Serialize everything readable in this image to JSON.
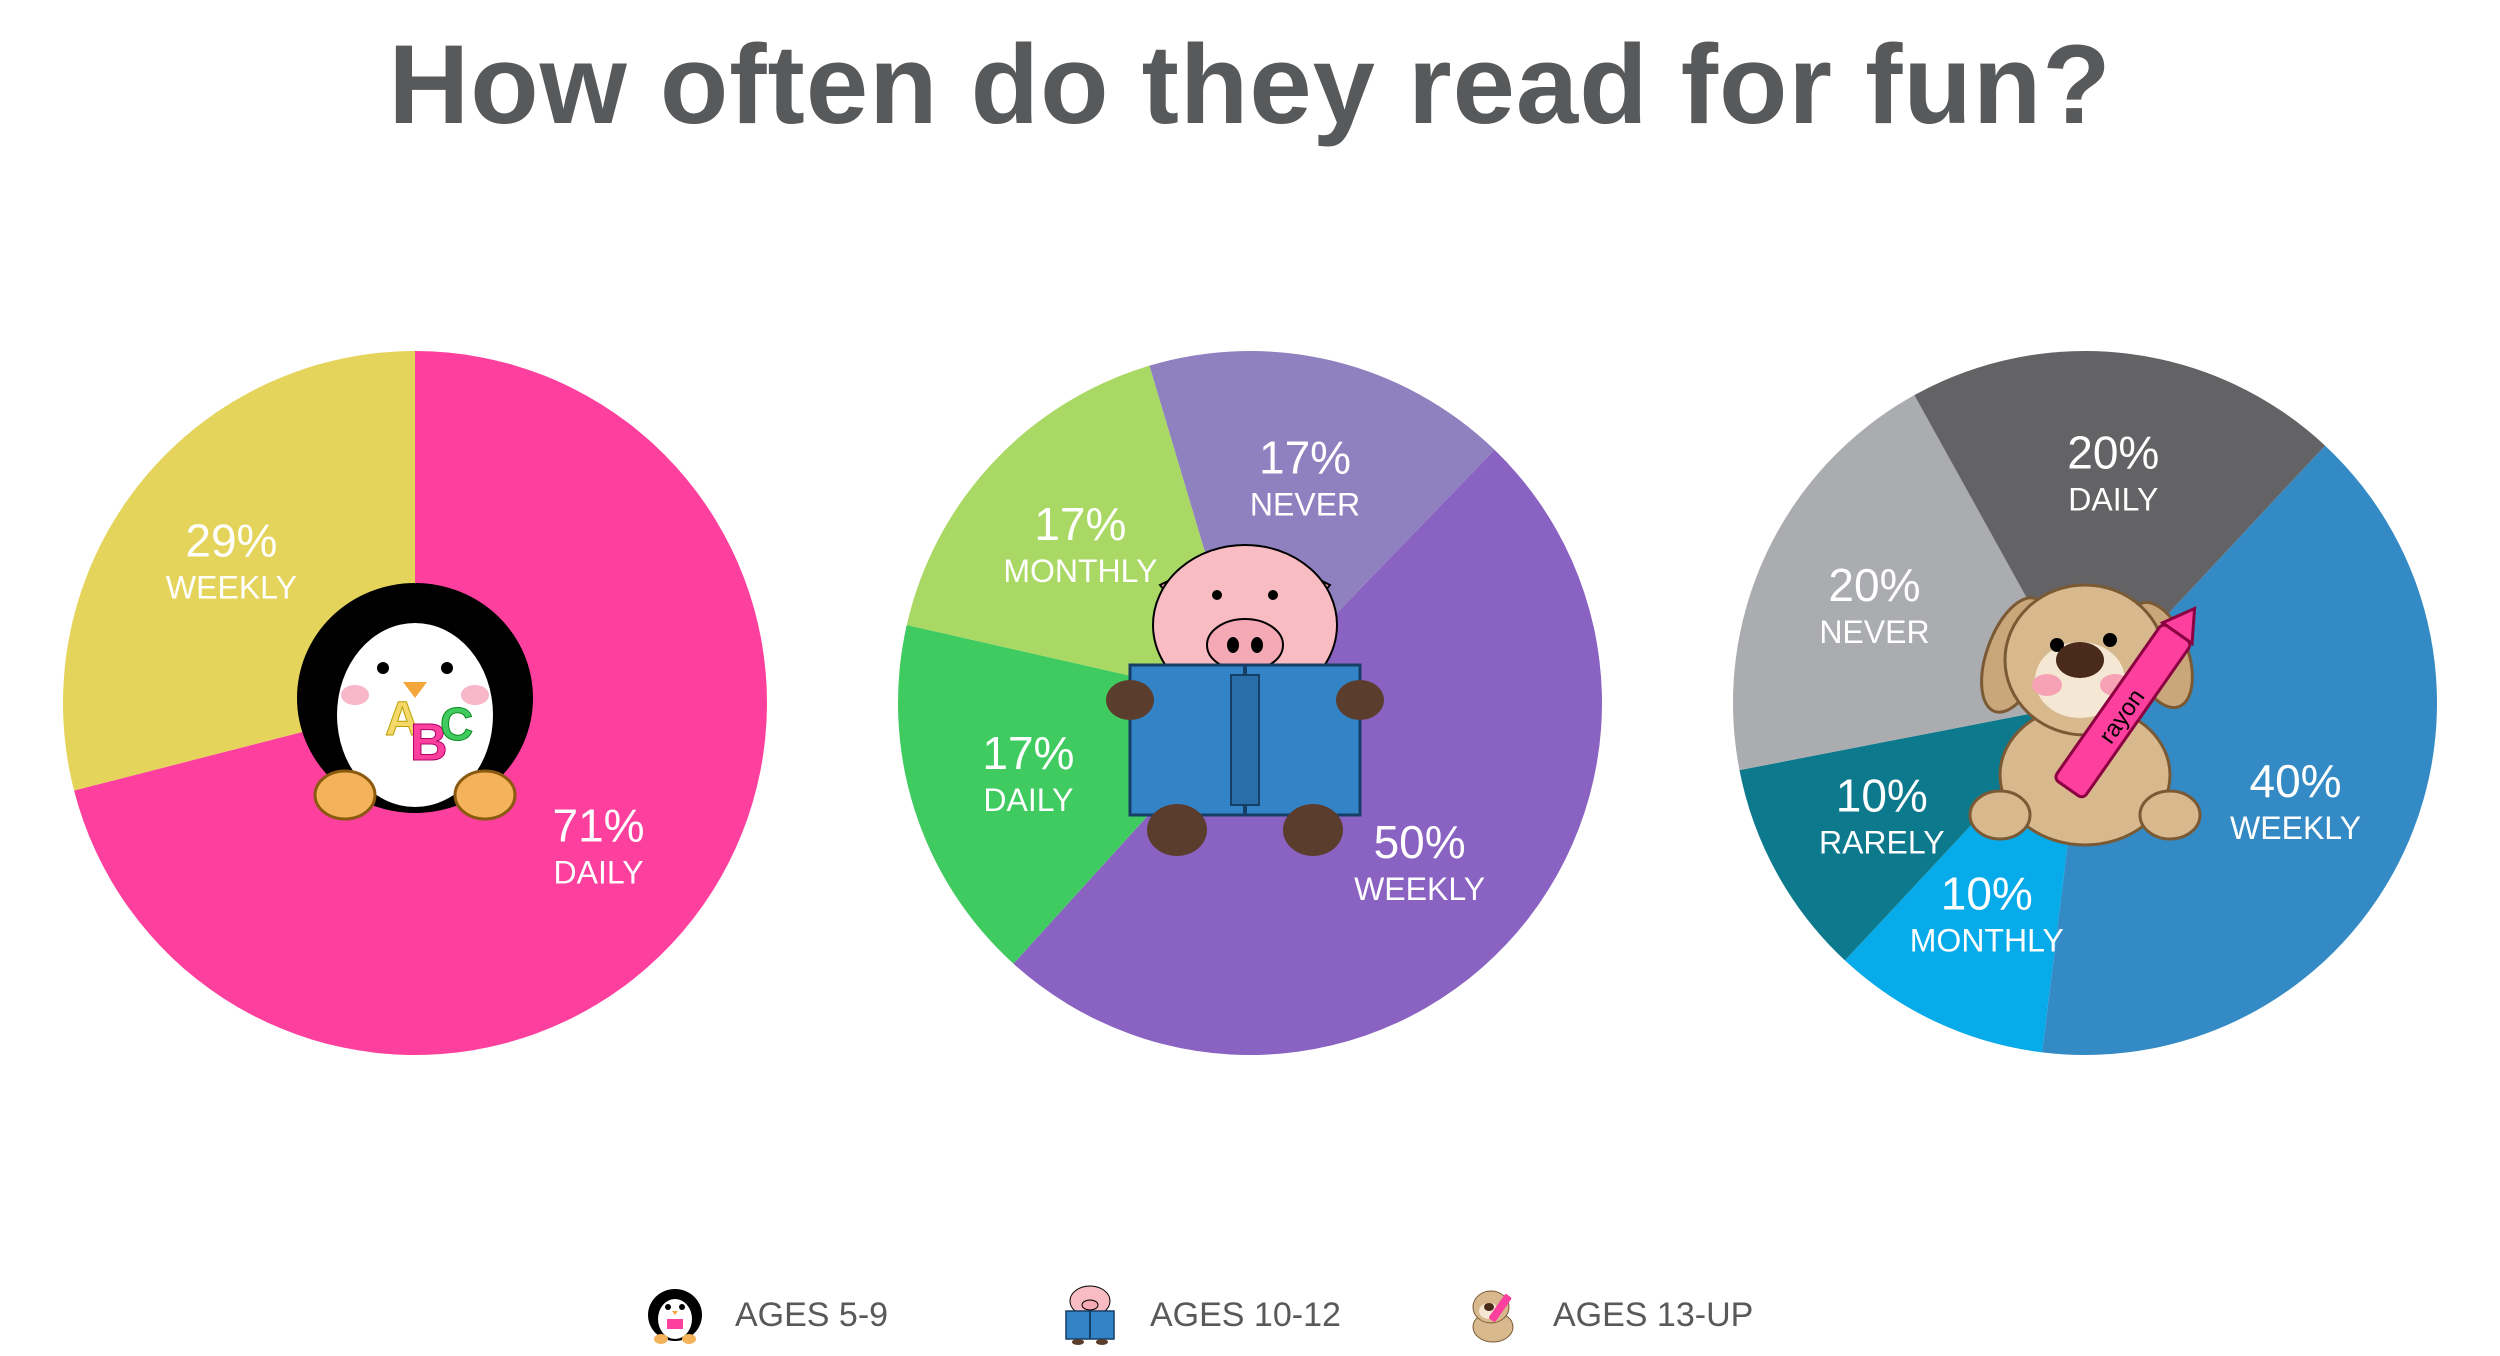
{
  "title": "How often do they read for fun?",
  "chart_data": [
    {
      "type": "pie",
      "group": "AGES 5-9",
      "slices": [
        {
          "label": "DAILY",
          "value": 71,
          "display": "71%",
          "color": "#fd3f9e"
        },
        {
          "label": "WEEKLY",
          "value": 29,
          "display": "29%",
          "color": "#e5d45b"
        }
      ]
    },
    {
      "type": "pie",
      "group": "AGES 10-12",
      "slices": [
        {
          "label": "WEEKLY",
          "value": 50,
          "display": "50%",
          "color": "#8a62c1"
        },
        {
          "label": "DAILY",
          "value": 17,
          "display": "17%",
          "color": "#3fcb5f"
        },
        {
          "label": "MONTHLY",
          "value": 17,
          "display": "17%",
          "color": "#a9d964"
        },
        {
          "label": "NEVER",
          "value": 17,
          "display": "17%",
          "color": "#8f80bf"
        }
      ]
    },
    {
      "type": "pie",
      "group": "AGES 13-UP",
      "slices": [
        {
          "label": "WEEKLY",
          "value": 40,
          "display": "40%",
          "color": "#348ac4"
        },
        {
          "label": "MONTHLY",
          "value": 10,
          "display": "10%",
          "color": "#07abe9"
        },
        {
          "label": "RARELY",
          "value": 10,
          "display": "10%",
          "color": "#0d798c"
        },
        {
          "label": "NEVER",
          "value": 20,
          "display": "20%",
          "color": "#abacaf"
        },
        {
          "label": "DAILY",
          "value": 20,
          "display": "20%",
          "color": "#636366"
        }
      ]
    }
  ],
  "legend": [
    {
      "label": "AGES 5-9",
      "icon": "penguin-icon"
    },
    {
      "label": "AGES 10-12",
      "icon": "pig-icon"
    },
    {
      "label": "AGES 13-UP",
      "icon": "dog-icon"
    }
  ]
}
